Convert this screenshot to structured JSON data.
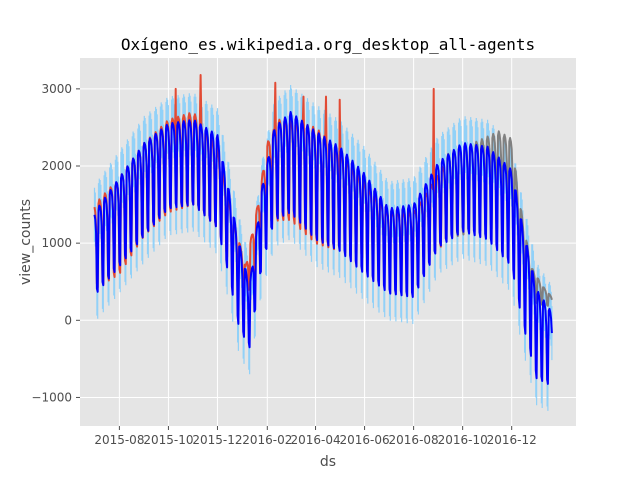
{
  "chart_data": {
    "type": "line",
    "title": "Oxígeno_es.wikipedia.org_desktop_all-agents",
    "xlabel": "ds",
    "ylabel": "view_counts",
    "x_axis": {
      "type": "date",
      "range": [
        "2015-06-13",
        "2017-02-19"
      ],
      "ticks": [
        {
          "date": "2015-08-01",
          "label": "2015-08"
        },
        {
          "date": "2015-10-01",
          "label": "2015-10"
        },
        {
          "date": "2015-12-01",
          "label": "2015-12"
        },
        {
          "date": "2016-02-01",
          "label": "2016-02"
        },
        {
          "date": "2016-04-01",
          "label": "2016-04"
        },
        {
          "date": "2016-06-01",
          "label": "2016-06"
        },
        {
          "date": "2016-08-01",
          "label": "2016-08"
        },
        {
          "date": "2016-10-01",
          "label": "2016-10"
        },
        {
          "date": "2016-12-01",
          "label": "2016-12"
        }
      ]
    },
    "y_axis": {
      "range": [
        -1370,
        3400
      ],
      "ticks": [
        -1000,
        0,
        1000,
        2000,
        3000
      ],
      "tick_labels": [
        "−1000",
        "0",
        "1000",
        "2000",
        "3000"
      ]
    },
    "grid": true,
    "weekly_pattern": "weekdays high, weekends low",
    "series": [
      {
        "role": "actual",
        "color": "#e24a33",
        "period": {
          "start": "2015-07-01",
          "end": "2016-09-10"
        },
        "weekly_high": [
          [
            "2015-07-01",
            1500
          ],
          [
            "2015-08-01",
            1850
          ],
          [
            "2015-09-01",
            2300
          ],
          [
            "2015-10-01",
            2600
          ],
          [
            "2015-11-01",
            2700
          ],
          [
            "2015-12-01",
            2250
          ],
          [
            "2015-12-20",
            1350
          ],
          [
            "2016-01-05",
            700
          ],
          [
            "2016-01-20",
            1500
          ],
          [
            "2016-02-01",
            2300
          ],
          [
            "2016-02-15",
            2600
          ],
          [
            "2016-03-01",
            2600
          ],
          [
            "2016-04-01",
            2500
          ],
          [
            "2016-05-01",
            2200
          ],
          [
            "2016-06-01",
            1800
          ],
          [
            "2016-07-01",
            1400
          ],
          [
            "2016-08-01",
            1400
          ],
          [
            "2016-09-10",
            2050
          ]
        ],
        "weekly_low": [
          [
            "2015-07-01",
            400
          ],
          [
            "2015-08-01",
            600
          ],
          [
            "2015-09-01",
            1100
          ],
          [
            "2015-10-01",
            1400
          ],
          [
            "2015-11-01",
            1500
          ],
          [
            "2015-12-01",
            1200
          ],
          [
            "2015-12-20",
            600
          ],
          [
            "2016-01-05",
            250
          ],
          [
            "2016-01-20",
            700
          ],
          [
            "2016-02-01",
            1200
          ],
          [
            "2016-02-15",
            1300
          ],
          [
            "2016-03-01",
            1300
          ],
          [
            "2016-04-01",
            1000
          ],
          [
            "2016-05-01",
            900
          ],
          [
            "2016-06-01",
            800
          ],
          [
            "2016-07-01",
            700
          ],
          [
            "2016-08-01",
            700
          ],
          [
            "2016-09-10",
            1000
          ]
        ],
        "spikes": [
          [
            "2015-07-28",
            1720
          ],
          [
            "2015-10-10",
            3000
          ],
          [
            "2015-11-10",
            3180
          ],
          [
            "2016-02-11",
            3080
          ],
          [
            "2016-03-17",
            2900
          ],
          [
            "2016-04-14",
            2900
          ],
          [
            "2016-05-01",
            2860
          ],
          [
            "2016-08-26",
            3000
          ]
        ]
      },
      {
        "role": "history",
        "color": "#808080",
        "period": {
          "start": "2016-09-11",
          "end": "2017-01-20"
        },
        "weekly_high": [
          [
            "2016-09-11",
            2150
          ],
          [
            "2016-10-15",
            2300
          ],
          [
            "2016-11-15",
            2450
          ],
          [
            "2016-12-01",
            2350
          ],
          [
            "2016-12-10",
            1600
          ],
          [
            "2016-12-25",
            700
          ],
          [
            "2017-01-08",
            450
          ],
          [
            "2017-01-20",
            300
          ]
        ],
        "weekly_low": [
          [
            "2016-09-11",
            1050
          ],
          [
            "2016-10-15",
            1150
          ],
          [
            "2016-11-15",
            1200
          ],
          [
            "2016-12-01",
            1000
          ],
          [
            "2016-12-10",
            600
          ],
          [
            "2016-12-25",
            250
          ],
          [
            "2017-01-08",
            200
          ],
          [
            "2017-01-20",
            180
          ]
        ]
      },
      {
        "role": "forecast",
        "color": "#0000ff",
        "period": {
          "start": "2015-07-01",
          "end": "2017-01-20"
        },
        "weekly_high": [
          [
            "2015-07-01",
            1400
          ],
          [
            "2015-08-01",
            1850
          ],
          [
            "2015-09-01",
            2300
          ],
          [
            "2015-10-01",
            2550
          ],
          [
            "2015-11-01",
            2600
          ],
          [
            "2015-12-01",
            2400
          ],
          [
            "2015-12-15",
            1700
          ],
          [
            "2015-12-28",
            1000
          ],
          [
            "2016-01-10",
            450
          ],
          [
            "2016-01-25",
            1700
          ],
          [
            "2016-02-10",
            2500
          ],
          [
            "2016-03-01",
            2700
          ],
          [
            "2016-04-01",
            2450
          ],
          [
            "2016-05-01",
            2250
          ],
          [
            "2016-06-01",
            1900
          ],
          [
            "2016-07-01",
            1450
          ],
          [
            "2016-08-01",
            1500
          ],
          [
            "2016-09-01",
            2050
          ],
          [
            "2016-10-01",
            2300
          ],
          [
            "2016-11-01",
            2250
          ],
          [
            "2016-12-01",
            1950
          ],
          [
            "2016-12-15",
            1200
          ],
          [
            "2017-01-01",
            400
          ],
          [
            "2017-01-20",
            100
          ]
        ],
        "weekly_low": [
          [
            "2015-07-01",
            320
          ],
          [
            "2015-08-01",
            700
          ],
          [
            "2015-09-01",
            1100
          ],
          [
            "2015-10-01",
            1450
          ],
          [
            "2015-11-01",
            1500
          ],
          [
            "2015-12-01",
            1200
          ],
          [
            "2015-12-15",
            600
          ],
          [
            "2015-12-28",
            -100
          ],
          [
            "2016-01-10",
            -350
          ],
          [
            "2016-01-25",
            700
          ],
          [
            "2016-02-10",
            1300
          ],
          [
            "2016-03-01",
            1400
          ],
          [
            "2016-04-01",
            1050
          ],
          [
            "2016-05-01",
            900
          ],
          [
            "2016-06-01",
            600
          ],
          [
            "2016-07-01",
            350
          ],
          [
            "2016-08-01",
            300
          ],
          [
            "2016-09-01",
            950
          ],
          [
            "2016-10-01",
            1150
          ],
          [
            "2016-11-01",
            1050
          ],
          [
            "2016-12-01",
            700
          ],
          [
            "2016-12-15",
            -50
          ],
          [
            "2017-01-01",
            -750
          ],
          [
            "2017-01-20",
            -850
          ]
        ]
      },
      {
        "role": "uncertainty-band",
        "color": "#87cefa",
        "margin": 350
      }
    ]
  }
}
